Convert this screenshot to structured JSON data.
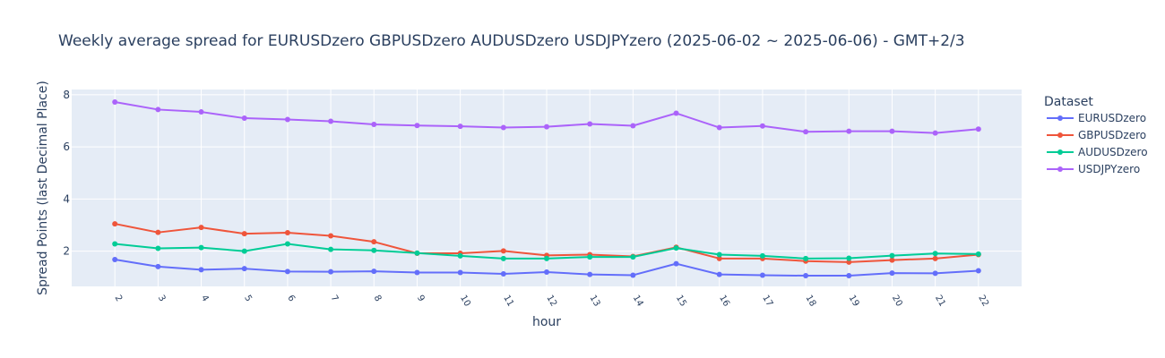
{
  "chart_data": {
    "type": "line",
    "title": "Weekly average spread for  EURUSDzero GBPUSDzero AUDUSDzero USDJPYzero (2025-06-02 ~ 2025-06-06) - GMT+2/3",
    "xlabel": "hour",
    "ylabel": "Spread Points (last Decimal Place)",
    "legend_title": "Dataset",
    "legend_position": "right",
    "grid": true,
    "x": [
      2,
      3,
      4,
      5,
      6,
      7,
      8,
      9,
      10,
      11,
      12,
      13,
      14,
      15,
      16,
      17,
      18,
      19,
      20,
      21,
      22
    ],
    "xlim": [
      1,
      23
    ],
    "ylim": [
      0.65,
      8.2
    ],
    "yticks": [
      2,
      4,
      6,
      8
    ],
    "series": [
      {
        "name": "EURUSDzero",
        "color": "#636efa",
        "values": [
          1.68,
          1.41,
          1.29,
          1.33,
          1.22,
          1.21,
          1.23,
          1.18,
          1.18,
          1.13,
          1.2,
          1.11,
          1.08,
          1.52,
          1.11,
          1.08,
          1.06,
          1.06,
          1.16,
          1.15,
          1.25
        ]
      },
      {
        "name": "GBPUSDzero",
        "color": "#ef553b",
        "values": [
          3.05,
          2.72,
          2.91,
          2.67,
          2.71,
          2.59,
          2.36,
          1.92,
          1.92,
          2.01,
          1.84,
          1.87,
          1.8,
          2.15,
          1.72,
          1.72,
          1.62,
          1.58,
          1.66,
          1.72,
          1.87
        ]
      },
      {
        "name": "AUDUSDzero",
        "color": "#00cc96",
        "values": [
          2.28,
          2.11,
          2.14,
          2.0,
          2.28,
          2.07,
          2.03,
          1.93,
          1.82,
          1.72,
          1.72,
          1.78,
          1.78,
          2.12,
          1.87,
          1.82,
          1.72,
          1.73,
          1.83,
          1.91,
          1.89
        ]
      },
      {
        "name": "USDJPYzero",
        "color": "#ab63fa",
        "values": [
          7.72,
          7.43,
          7.34,
          7.1,
          7.05,
          6.98,
          6.86,
          6.82,
          6.79,
          6.74,
          6.77,
          6.88,
          6.81,
          7.29,
          6.74,
          6.8,
          6.58,
          6.6,
          6.6,
          6.53,
          6.68
        ]
      }
    ]
  }
}
